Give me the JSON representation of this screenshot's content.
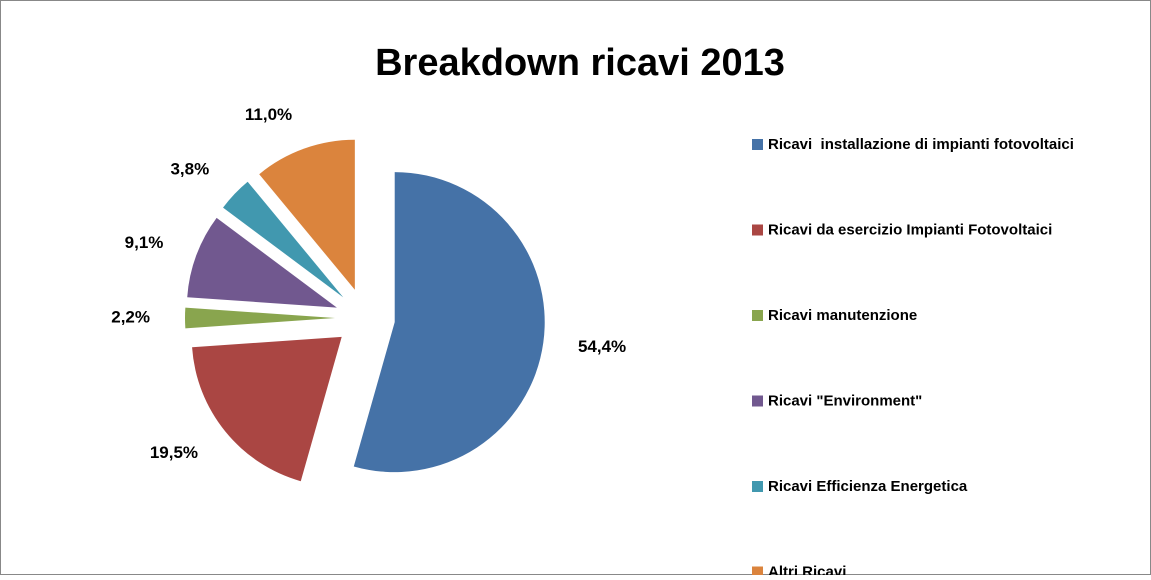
{
  "chart_data": {
    "type": "pie",
    "title": "Breakdown ricavi 2013",
    "categories": [
      "Ricavi  installazione di impianti fotovoltaici",
      "Ricavi da esercizio Impianti Fotovoltaici",
      "Ricavi manutenzione",
      "Ricavi \"Environment\"",
      "Ricavi Efficienza Energetica",
      "Altri Ricavi"
    ],
    "values": [
      54.4,
      19.5,
      2.2,
      9.1,
      3.8,
      11.0
    ],
    "value_labels": [
      "54,4%",
      "19,5%",
      "2,2%",
      "9,1%",
      "3,8%",
      "11,0%"
    ],
    "colors": [
      "#4572a7",
      "#aa4643",
      "#89a54e",
      "#71588f",
      "#4198af",
      "#db843d"
    ],
    "legend": "right"
  }
}
